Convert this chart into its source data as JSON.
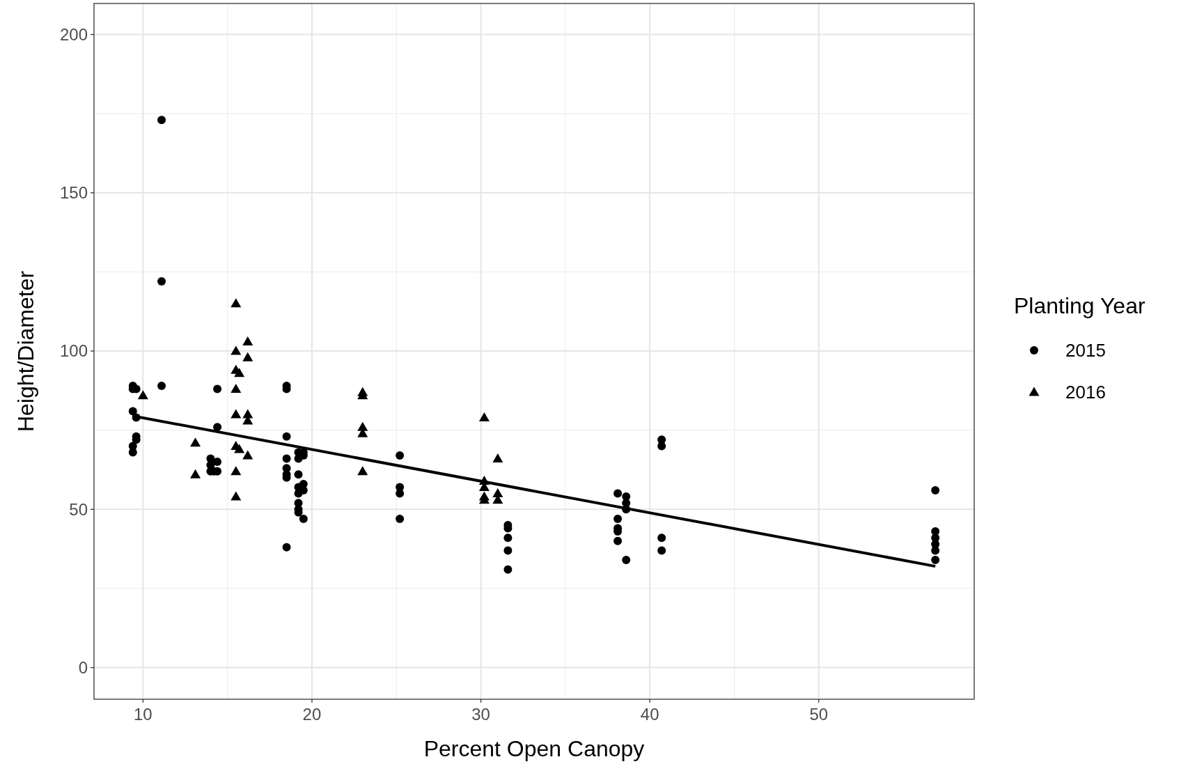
{
  "chart_data": {
    "type": "scatter",
    "xlabel": "Percent Open Canopy",
    "ylabel": "Height/Diameter",
    "legend_title": "Planting Year",
    "legend": "right",
    "grid": true,
    "xlim": [
      7.1,
      59.2
    ],
    "xticks": [
      10,
      20,
      30,
      40,
      50
    ],
    "ylim": [
      -10,
      209.8
    ],
    "yticks": [
      0,
      50,
      100,
      150,
      200
    ],
    "series": [
      {
        "name": "2015",
        "color": "#000000",
        "marker": "circle",
        "x": [
          9.4,
          9.4,
          9.6,
          9.4,
          9.6,
          9.6,
          9.6,
          9.4,
          9.4,
          11.1,
          11.1,
          11.1,
          14,
          14,
          14,
          14.2,
          14.4,
          14.4,
          14.4,
          14.4,
          18.5,
          18.5,
          18.5,
          18.5,
          18.5,
          18.5,
          18.5,
          18.5,
          19.2,
          19.2,
          19.2,
          19.2,
          19.2,
          19.2,
          19.2,
          19.2,
          19.5,
          19.5,
          19.5,
          19.5,
          19.5,
          25.2,
          25.2,
          25.2,
          25.2,
          31.6,
          31.6,
          31.6,
          31.6,
          31.6,
          38.1,
          38.1,
          38.1,
          38.1,
          38.1,
          38.6,
          38.6,
          38.6,
          38.6,
          40.7,
          40.7,
          40.7,
          40.7,
          56.9,
          56.9,
          56.9,
          56.9,
          56.9,
          56.9
        ],
        "values": [
          88,
          89,
          88,
          81,
          79,
          73,
          72,
          70,
          68,
          173,
          122,
          89,
          66,
          64,
          62,
          62,
          88,
          76,
          65,
          62,
          89,
          88,
          73,
          66,
          63,
          61,
          60,
          38,
          68,
          66,
          61,
          57,
          55,
          52,
          50,
          49,
          68,
          67,
          58,
          56,
          47,
          67,
          57,
          55,
          47,
          45,
          44,
          41,
          37,
          31,
          55,
          47,
          44,
          43,
          40,
          54,
          52,
          50,
          34,
          72,
          70,
          41,
          37,
          56,
          43,
          41,
          39,
          37,
          34
        ]
      },
      {
        "name": "2016",
        "color": "#000000",
        "marker": "triangle",
        "x": [
          10,
          13.1,
          13.1,
          15.5,
          15.5,
          15.5,
          15.7,
          15.5,
          15.5,
          15.5,
          15.7,
          15.5,
          15.5,
          16.2,
          16.2,
          16.2,
          16.2,
          16.2,
          23,
          23,
          23,
          23,
          23,
          30.2,
          30.2,
          30.2,
          30.2,
          30.2,
          31,
          31,
          31
        ],
        "values": [
          86,
          71,
          61,
          115,
          100,
          94,
          93,
          88,
          80,
          70,
          69,
          62,
          54,
          103,
          98,
          80,
          78,
          67,
          87,
          86,
          76,
          74,
          62,
          79,
          59,
          57,
          54,
          53,
          66,
          55,
          53
        ]
      },
      {
        "type": "line",
        "color": "#000000",
        "x": [
          9.4,
          56.9
        ],
        "values": [
          79.5,
          32
        ]
      }
    ]
  }
}
